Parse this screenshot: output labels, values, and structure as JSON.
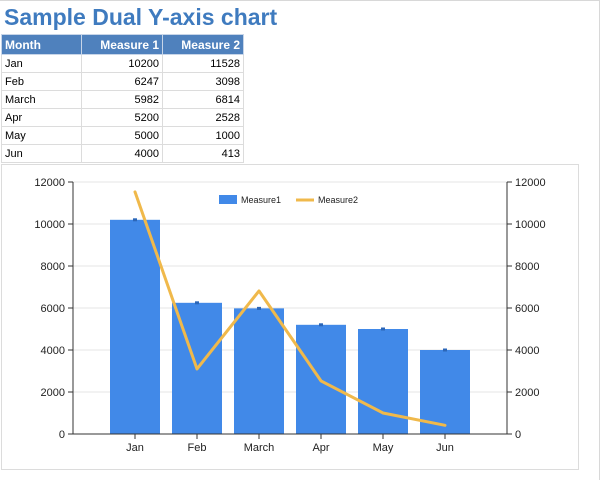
{
  "page": {
    "title": "Sample Dual Y-axis chart"
  },
  "table": {
    "headers": [
      "Month",
      "Measure 1",
      "Measure 2"
    ],
    "rows": [
      [
        "Jan",
        "10200",
        "11528"
      ],
      [
        "Feb",
        "6247",
        "3098"
      ],
      [
        "March",
        "5982",
        "6814"
      ],
      [
        "Apr",
        "5200",
        "2528"
      ],
      [
        "May",
        "5000",
        "1000"
      ],
      [
        "Jun",
        "4000",
        "413"
      ]
    ]
  },
  "colors": {
    "title": "#3f7bbf",
    "header_bg": "#4f81bd",
    "bar": "#4189e8",
    "line": "#f0b94b"
  },
  "chart_data": {
    "type": "bar",
    "categories": [
      "Jan",
      "Feb",
      "March",
      "Apr",
      "May",
      "Jun"
    ],
    "series": [
      {
        "name": "Measure1",
        "type": "bar",
        "axis": "left",
        "values": [
          10200,
          6247,
          5982,
          5200,
          5000,
          4000
        ]
      },
      {
        "name": "Measure2",
        "type": "line",
        "axis": "right",
        "values": [
          11528,
          3098,
          6814,
          2528,
          1000,
          413
        ]
      }
    ],
    "title": "",
    "xlabel": "",
    "ylabel": "",
    "ylim": [
      0,
      12000
    ],
    "y2lim": [
      0,
      12000
    ],
    "y_ticks": [
      0,
      2000,
      4000,
      6000,
      8000,
      10000,
      12000
    ],
    "grid": true,
    "legend": "top-center"
  }
}
